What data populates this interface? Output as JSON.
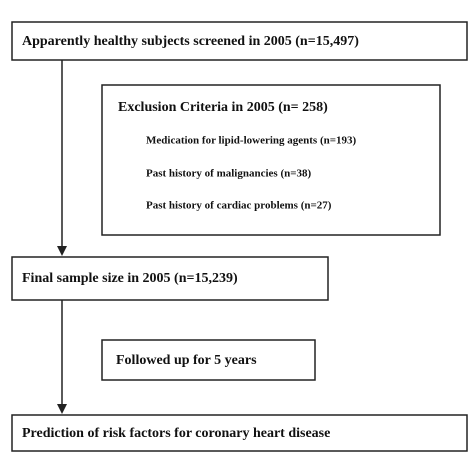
{
  "nodes": [
    {
      "label": "Apparently healthy subjects screened in 2005 (n=15,497)"
    },
    {
      "title": "Exclusion Criteria in 2005 (n= 258)",
      "items": [
        "Medication for lipid-lowering agents (n=193)",
        "Past history of malignancies (n=38)",
        "Past history of cardiac problems (n=27)"
      ]
    },
    {
      "label": "Final sample size in 2005 (n=15,239)"
    },
    {
      "label": "Followed up for 5 years"
    },
    {
      "label": "Prediction of risk factors for coronary heart disease"
    }
  ]
}
